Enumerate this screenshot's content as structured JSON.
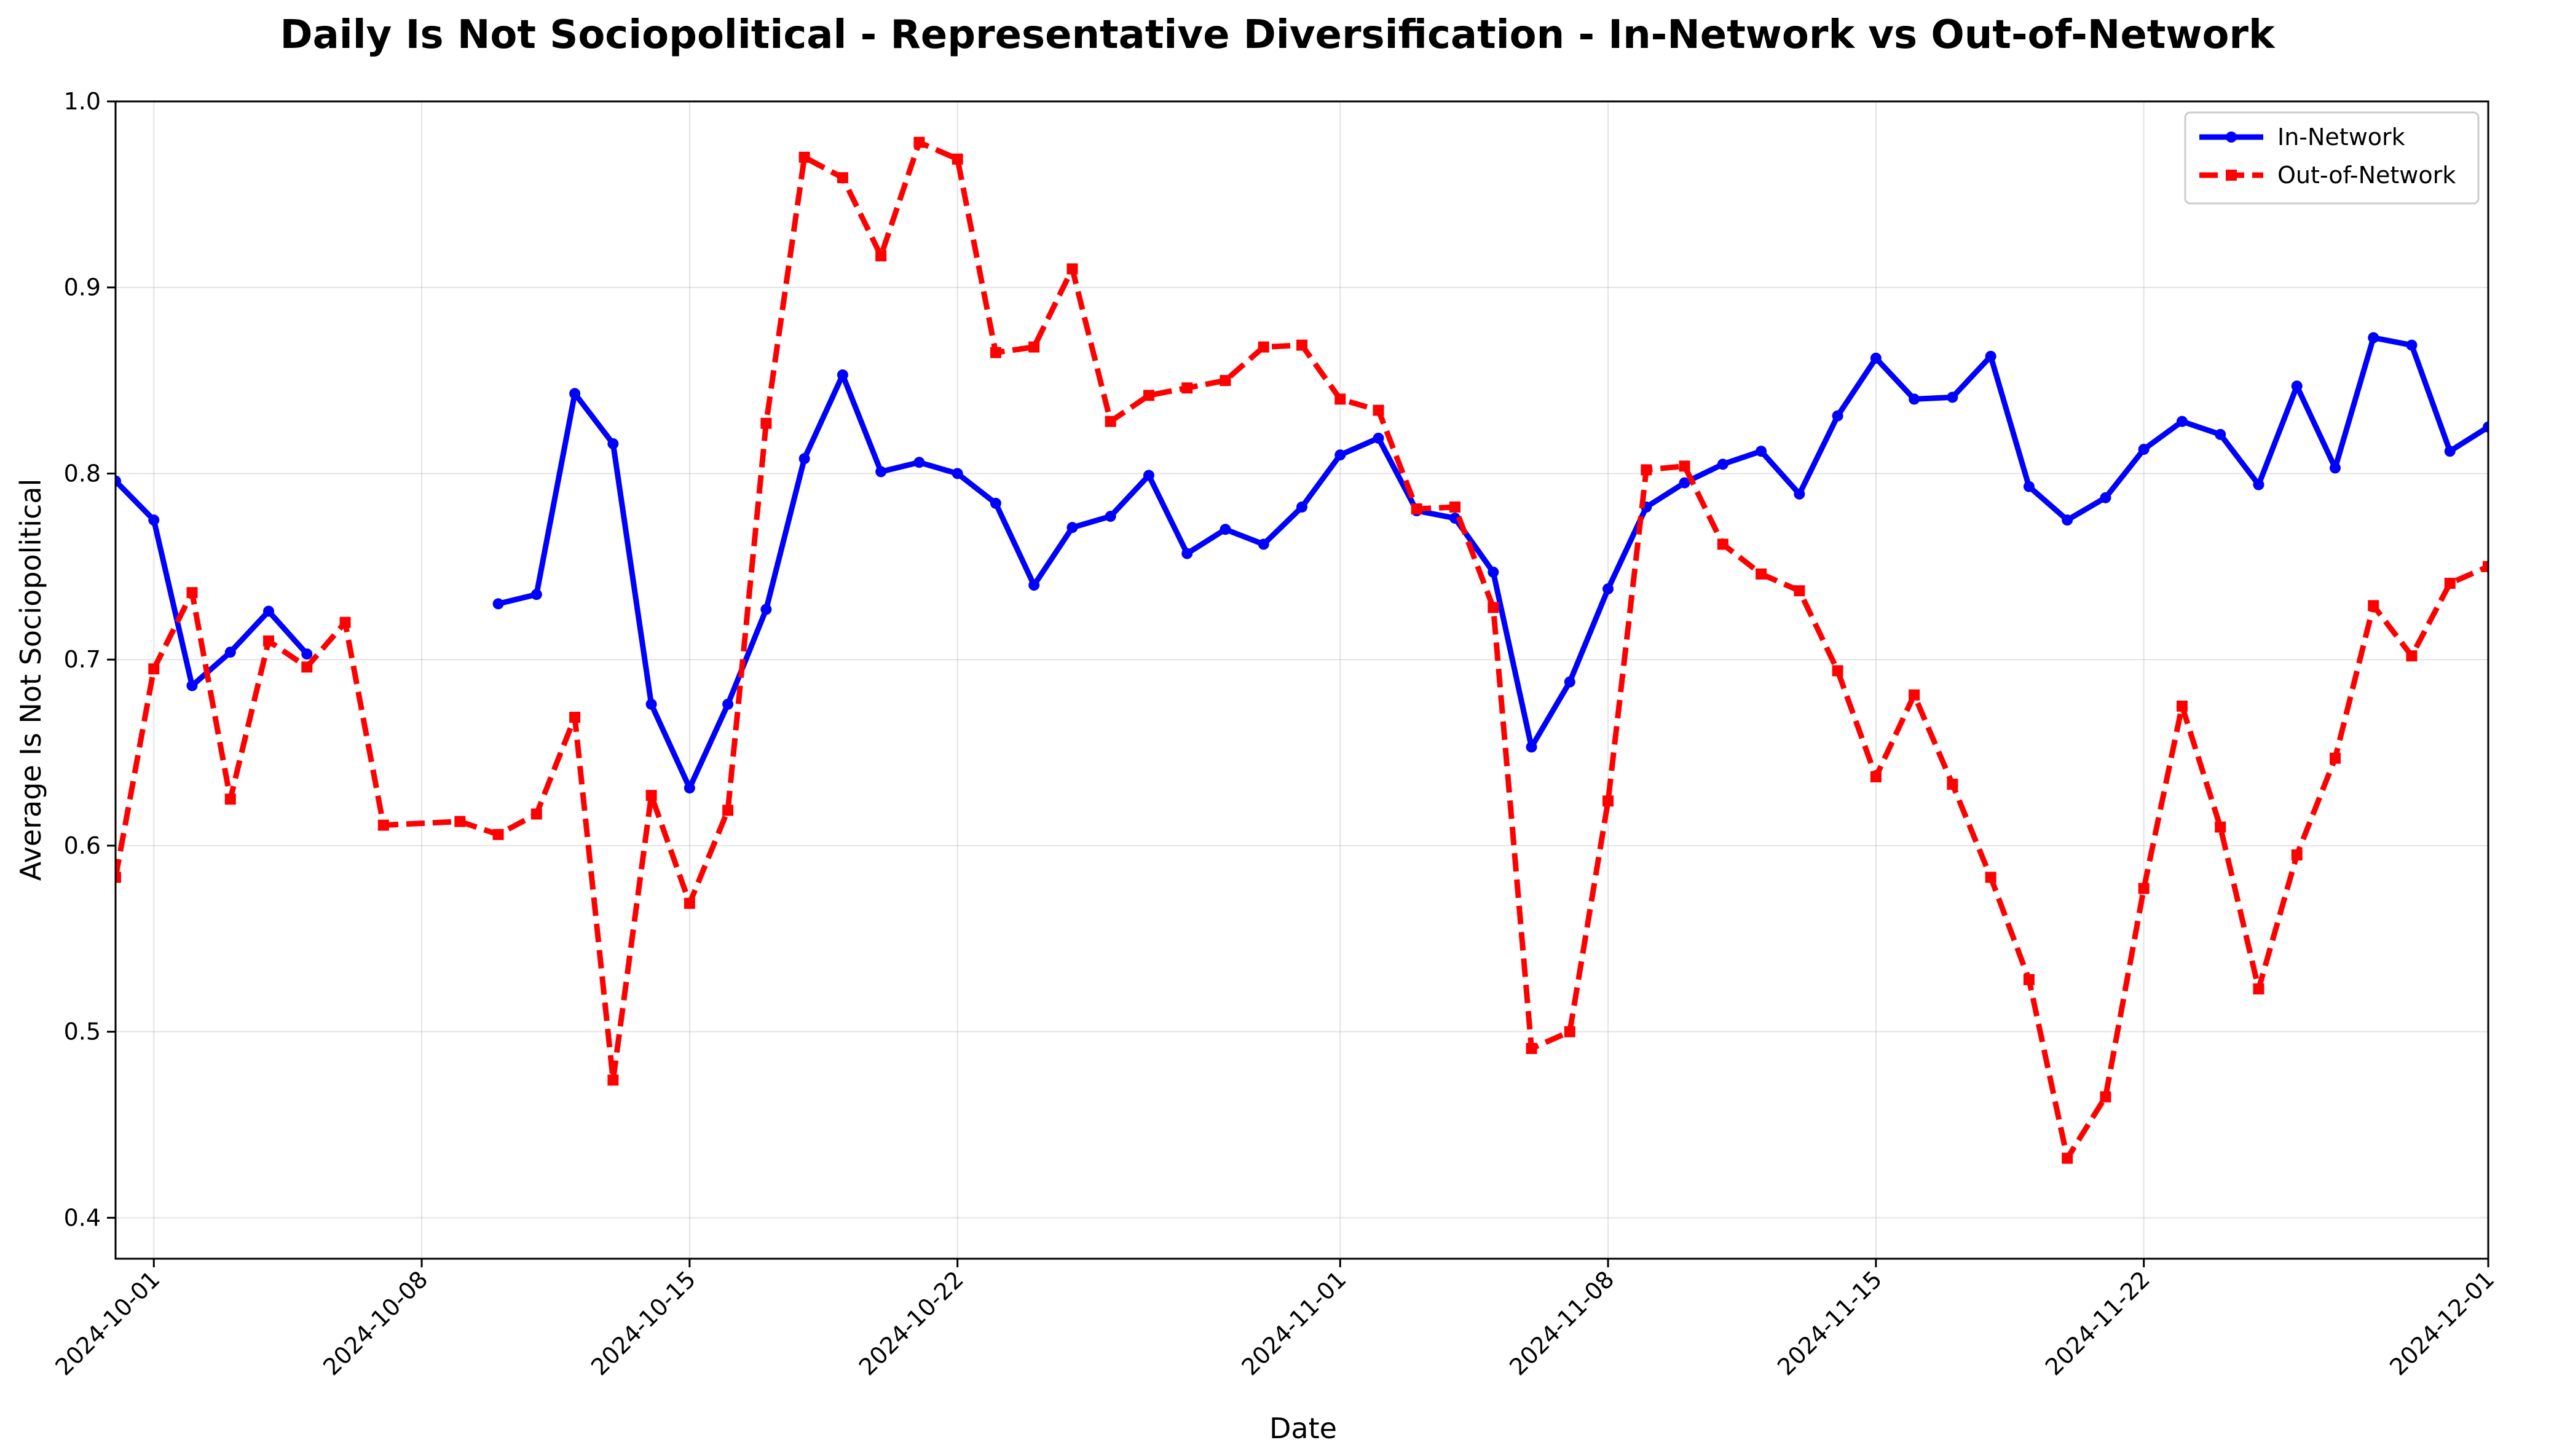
{
  "chart_data": {
    "type": "line",
    "title": "Daily Is Not Sociopolitical - Representative Diversification - In-Network vs Out-of-Network",
    "xlabel": "Date",
    "ylabel": "Average Is Not Sociopolitical",
    "xlim": [
      "2024-09-30",
      "2024-12-01"
    ],
    "ylim": [
      0.378,
      1.0
    ],
    "yticks": [
      "0.4",
      "0.5",
      "0.6",
      "0.7",
      "0.8",
      "0.9",
      "1.0"
    ],
    "xticks": [
      "2024-10-01",
      "2024-10-08",
      "2024-10-15",
      "2024-10-22",
      "2024-11-01",
      "2024-11-08",
      "2024-11-15",
      "2024-11-22",
      "2024-12-01"
    ],
    "grid": true,
    "legend_position": "top-right",
    "series": [
      {
        "name": "In-Network",
        "color": "#0000ff",
        "style": "solid",
        "marker": "circle",
        "points": [
          [
            "2024-09-30",
            0.796
          ],
          [
            "2024-10-01",
            0.775
          ],
          [
            "2024-10-02",
            0.686
          ],
          [
            "2024-10-03",
            0.704
          ],
          [
            "2024-10-04",
            0.726
          ],
          [
            "2024-10-05",
            0.703
          ],
          [
            "2024-10-10",
            0.73
          ],
          [
            "2024-10-11",
            0.735
          ],
          [
            "2024-10-12",
            0.843
          ],
          [
            "2024-10-13",
            0.816
          ],
          [
            "2024-10-14",
            0.676
          ],
          [
            "2024-10-15",
            0.631
          ],
          [
            "2024-10-16",
            0.676
          ],
          [
            "2024-10-17",
            0.727
          ],
          [
            "2024-10-18",
            0.808
          ],
          [
            "2024-10-19",
            0.853
          ],
          [
            "2024-10-20",
            0.801
          ],
          [
            "2024-10-21",
            0.806
          ],
          [
            "2024-10-22",
            0.8
          ],
          [
            "2024-10-23",
            0.784
          ],
          [
            "2024-10-24",
            0.74
          ],
          [
            "2024-10-25",
            0.771
          ],
          [
            "2024-10-26",
            0.777
          ],
          [
            "2024-10-27",
            0.799
          ],
          [
            "2024-10-28",
            0.757
          ],
          [
            "2024-10-29",
            0.77
          ],
          [
            "2024-10-30",
            0.762
          ],
          [
            "2024-10-31",
            0.782
          ],
          [
            "2024-11-01",
            0.81
          ],
          [
            "2024-11-02",
            0.819
          ],
          [
            "2024-11-03",
            0.78
          ],
          [
            "2024-11-04",
            0.776
          ],
          [
            "2024-11-05",
            0.747
          ],
          [
            "2024-11-06",
            0.653
          ],
          [
            "2024-11-07",
            0.688
          ],
          [
            "2024-11-08",
            0.738
          ],
          [
            "2024-11-09",
            0.782
          ],
          [
            "2024-11-10",
            0.795
          ],
          [
            "2024-11-11",
            0.805
          ],
          [
            "2024-11-12",
            0.812
          ],
          [
            "2024-11-13",
            0.789
          ],
          [
            "2024-11-14",
            0.831
          ],
          [
            "2024-11-15",
            0.862
          ],
          [
            "2024-11-16",
            0.84
          ],
          [
            "2024-11-17",
            0.841
          ],
          [
            "2024-11-18",
            0.863
          ],
          [
            "2024-11-19",
            0.793
          ],
          [
            "2024-11-20",
            0.775
          ],
          [
            "2024-11-21",
            0.787
          ],
          [
            "2024-11-22",
            0.813
          ],
          [
            "2024-11-23",
            0.828
          ],
          [
            "2024-11-24",
            0.821
          ],
          [
            "2024-11-25",
            0.794
          ],
          [
            "2024-11-26",
            0.847
          ],
          [
            "2024-11-27",
            0.803
          ],
          [
            "2024-11-28",
            0.873
          ],
          [
            "2024-11-29",
            0.869
          ],
          [
            "2024-11-30",
            0.812
          ],
          [
            "2024-12-01",
            0.825
          ]
        ]
      },
      {
        "name": "Out-of-Network",
        "color": "#ff0000",
        "style": "dashed",
        "marker": "square",
        "points": [
          [
            "2024-09-30",
            0.583
          ],
          [
            "2024-10-01",
            0.695
          ],
          [
            "2024-10-02",
            0.736
          ],
          [
            "2024-10-03",
            0.625
          ],
          [
            "2024-10-04",
            0.71
          ],
          [
            "2024-10-05",
            0.696
          ],
          [
            "2024-10-06",
            0.72
          ],
          [
            "2024-10-07",
            0.611
          ],
          [
            "2024-10-09",
            0.613
          ],
          [
            "2024-10-10",
            0.606
          ],
          [
            "2024-10-11",
            0.617
          ],
          [
            "2024-10-12",
            0.669
          ],
          [
            "2024-10-13",
            0.474
          ],
          [
            "2024-10-14",
            0.627
          ],
          [
            "2024-10-15",
            0.569
          ],
          [
            "2024-10-16",
            0.619
          ],
          [
            "2024-10-17",
            0.827
          ],
          [
            "2024-10-18",
            0.97
          ],
          [
            "2024-10-19",
            0.959
          ],
          [
            "2024-10-20",
            0.917
          ],
          [
            "2024-10-21",
            0.978
          ],
          [
            "2024-10-22",
            0.969
          ],
          [
            "2024-10-23",
            0.865
          ],
          [
            "2024-10-24",
            0.868
          ],
          [
            "2024-10-25",
            0.91
          ],
          [
            "2024-10-26",
            0.828
          ],
          [
            "2024-10-27",
            0.842
          ],
          [
            "2024-10-28",
            0.846
          ],
          [
            "2024-10-29",
            0.85
          ],
          [
            "2024-10-30",
            0.868
          ],
          [
            "2024-10-31",
            0.869
          ],
          [
            "2024-11-01",
            0.84
          ],
          [
            "2024-11-02",
            0.834
          ],
          [
            "2024-11-03",
            0.781
          ],
          [
            "2024-11-04",
            0.782
          ],
          [
            "2024-11-05",
            0.728
          ],
          [
            "2024-11-06",
            0.491
          ],
          [
            "2024-11-07",
            0.5
          ],
          [
            "2024-11-08",
            0.624
          ],
          [
            "2024-11-09",
            0.802
          ],
          [
            "2024-11-10",
            0.804
          ],
          [
            "2024-11-11",
            0.762
          ],
          [
            "2024-11-12",
            0.746
          ],
          [
            "2024-11-13",
            0.737
          ],
          [
            "2024-11-14",
            0.694
          ],
          [
            "2024-11-15",
            0.637
          ],
          [
            "2024-11-16",
            0.681
          ],
          [
            "2024-11-17",
            0.633
          ],
          [
            "2024-11-18",
            0.583
          ],
          [
            "2024-11-19",
            0.528
          ],
          [
            "2024-11-20",
            0.432
          ],
          [
            "2024-11-21",
            0.465
          ],
          [
            "2024-11-22",
            0.577
          ],
          [
            "2024-11-23",
            0.675
          ],
          [
            "2024-11-24",
            0.61
          ],
          [
            "2024-11-25",
            0.523
          ],
          [
            "2024-11-26",
            0.595
          ],
          [
            "2024-11-27",
            0.647
          ],
          [
            "2024-11-28",
            0.729
          ],
          [
            "2024-11-29",
            0.702
          ],
          [
            "2024-11-30",
            0.741
          ],
          [
            "2024-12-01",
            0.75
          ]
        ]
      }
    ]
  }
}
